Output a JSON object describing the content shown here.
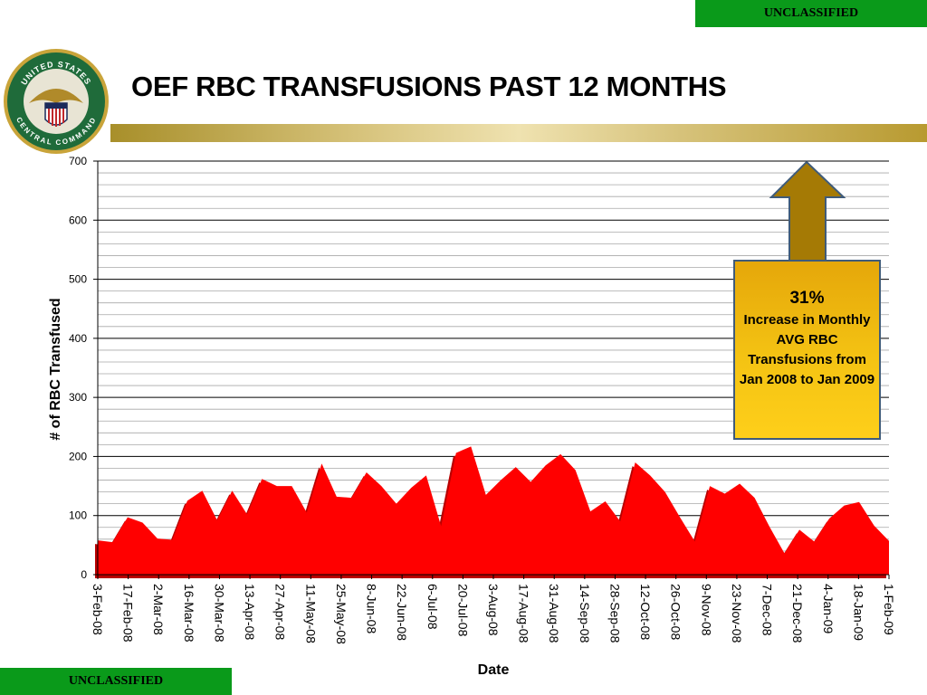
{
  "banners": {
    "top": "UNCLASSIFIED",
    "bottom": "UNCLASSIFIED"
  },
  "seal": {
    "top_text": "UNITED STATES",
    "bottom_text": "CENTRAL COMMAND"
  },
  "title": "OEF RBC TRANSFUSIONS PAST 12 MONTHS",
  "callout": {
    "percent": "31%",
    "text": "Increase in Monthly AVG RBC Transfusions from Jan 2008 to Jan 2009"
  },
  "colors": {
    "area_fill": "#ff0000",
    "area_shadow": "#b80000",
    "banner": "#0a9a1a",
    "callout": "#f4c313",
    "arrow": "#a57a05"
  },
  "chart_data": {
    "type": "area",
    "xlabel": "Date",
    "ylabel": "# of RBC Transfused",
    "ylim": [
      0,
      700
    ],
    "yticks": [
      0,
      100,
      200,
      300,
      400,
      500,
      600,
      700
    ],
    "grid": "horizontal",
    "x_tick_labels": [
      "3-Feb-08",
      "17-Feb-08",
      "2-Mar-08",
      "16-Mar-08",
      "30-Mar-08",
      "13-Apr-08",
      "27-Apr-08",
      "11-May-08",
      "25-May-08",
      "8-Jun-08",
      "22-Jun-08",
      "6-Jul-08",
      "20-Jul-08",
      "3-Aug-08",
      "17-Aug-08",
      "31-Aug-08",
      "14-Sep-08",
      "28-Sep-08",
      "12-Oct-08",
      "26-Oct-08",
      "9-Nov-08",
      "23-Nov-08",
      "7-Dec-08",
      "21-Dec-08",
      "4-Jan-09",
      "18-Jan-09",
      "1-Feb-09"
    ],
    "values": [
      58,
      55,
      97,
      88,
      61,
      59,
      125,
      142,
      92,
      142,
      102,
      162,
      150,
      150,
      105,
      188,
      132,
      130,
      173,
      150,
      120,
      147,
      168,
      82,
      206,
      217,
      135,
      160,
      182,
      157,
      185,
      204,
      177,
      107,
      124,
      90,
      190,
      168,
      140,
      97,
      56,
      150,
      137,
      154,
      130,
      81,
      36,
      76,
      56,
      95,
      117,
      123,
      83,
      57
    ]
  }
}
